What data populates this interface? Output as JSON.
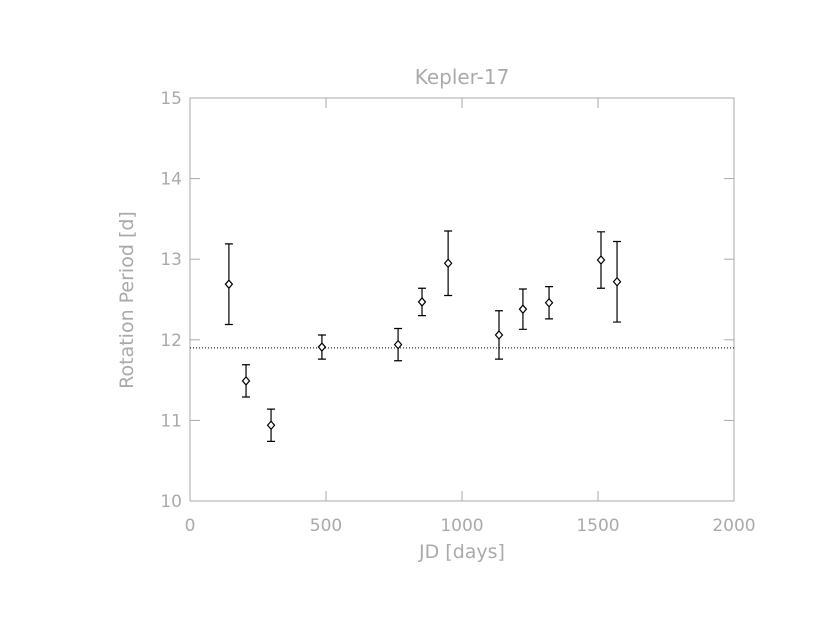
{
  "chart_data": {
    "type": "scatter",
    "title": "Kepler-17",
    "x_label": "JD [days]",
    "y_label": "Rotation Period [d]",
    "x": [
      143,
      206,
      298,
      485,
      765,
      853,
      949,
      1136,
      1224,
      1320,
      1511,
      1570
    ],
    "values": [
      12.69,
      11.49,
      10.94,
      11.91,
      11.94,
      12.47,
      12.95,
      12.06,
      12.38,
      12.46,
      12.99,
      12.72
    ],
    "errors": [
      0.5,
      0.2,
      0.2,
      0.15,
      0.2,
      0.17,
      0.4,
      0.3,
      0.25,
      0.2,
      0.35,
      0.5
    ],
    "reference_line": 11.9,
    "xlim": [
      0,
      2000
    ],
    "ylim": [
      10,
      15
    ],
    "xticks": [
      0,
      500,
      1000,
      1500,
      2000
    ],
    "yticks": [
      10,
      11,
      12,
      13,
      14,
      15
    ],
    "color": "#000000",
    "axis_color": "#aaaaaa"
  }
}
